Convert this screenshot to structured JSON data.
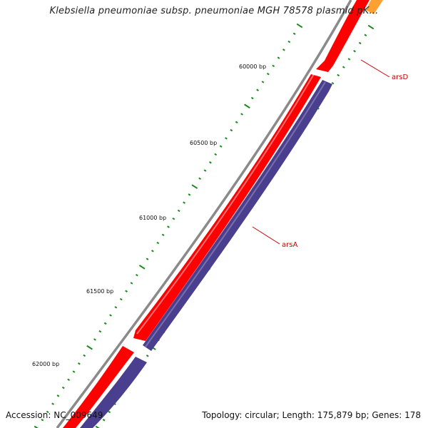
{
  "title": "Klebsiella pneumoniae subsp. pneumoniae MGH 78578 plasmid pK...",
  "footer": {
    "accession": "Accession: NC_009649",
    "summary": "Topology: circular; Length: 175,879 bp; Genes: 178"
  },
  "colors": {
    "backbone": "#8a8a8a",
    "forward_feature": "#ff0000",
    "reverse_feature": "#4a3f8f",
    "tick": "#1a8a1a",
    "gene_label": "#cc0000",
    "upstream_feature": "#ffa030"
  },
  "position_labels": [
    "60000 bp",
    "60500 bp",
    "61000 bp",
    "61500 bp",
    "62000 bp"
  ],
  "genes": [
    {
      "name": "arsD",
      "strand": "forward"
    },
    {
      "name": "arsA",
      "strand": "reverse"
    }
  ]
}
